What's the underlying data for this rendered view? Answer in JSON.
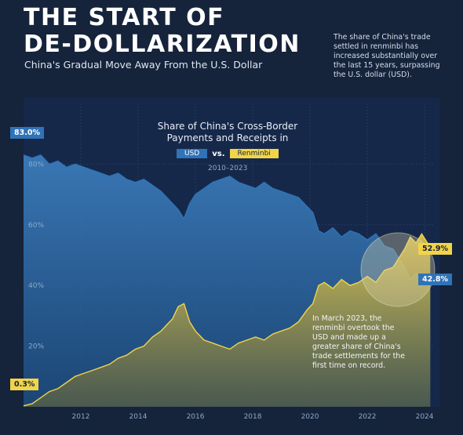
{
  "header": {
    "title_line1": "THE START OF",
    "title_line2": "DE-DOLLARIZATION",
    "subtitle": "China's Gradual Move Away From the U.S. Dollar",
    "side_note": "The share of China's trade settled in renminbi has increased substantially over the last 15 years, surpassing the U.S. dollar (USD)."
  },
  "chart_data": {
    "type": "area",
    "title": "Share of China's Cross-Border Payments and Receipts in",
    "legend": {
      "usd": "USD",
      "vs": "vs.",
      "rmb": "Renminbi"
    },
    "years_label": "2010–2023",
    "xlabel": "",
    "ylabel": "",
    "xlim": [
      2010,
      2024.3
    ],
    "ylim": [
      0,
      100
    ],
    "y_ticks": [
      {
        "value": 20,
        "label": "20%"
      },
      {
        "value": 40,
        "label": "40%"
      },
      {
        "value": 60,
        "label": "60%"
      },
      {
        "value": 80,
        "label": "80%"
      }
    ],
    "x_ticks": [
      {
        "value": 2012,
        "label": "2012"
      },
      {
        "value": 2014,
        "label": "2014"
      },
      {
        "value": 2016,
        "label": "2016"
      },
      {
        "value": 2018,
        "label": "2018"
      },
      {
        "value": 2020,
        "label": "2020"
      },
      {
        "value": 2022,
        "label": "2022"
      },
      {
        "value": 2024,
        "label": "2024"
      }
    ],
    "series": [
      {
        "name": "USD",
        "color": "#2f73b8",
        "points": [
          [
            2010.0,
            83.0
          ],
          [
            2010.3,
            82
          ],
          [
            2010.6,
            83
          ],
          [
            2010.9,
            80
          ],
          [
            2011.2,
            81
          ],
          [
            2011.5,
            79
          ],
          [
            2011.8,
            80
          ],
          [
            2012.1,
            79
          ],
          [
            2012.4,
            78
          ],
          [
            2012.7,
            77
          ],
          [
            2013.0,
            76
          ],
          [
            2013.3,
            77
          ],
          [
            2013.6,
            75
          ],
          [
            2013.9,
            74
          ],
          [
            2014.2,
            75
          ],
          [
            2014.5,
            73
          ],
          [
            2014.8,
            71
          ],
          [
            2015.1,
            68
          ],
          [
            2015.4,
            65
          ],
          [
            2015.6,
            62
          ],
          [
            2015.8,
            67
          ],
          [
            2016.0,
            70
          ],
          [
            2016.3,
            72
          ],
          [
            2016.6,
            74
          ],
          [
            2016.9,
            75
          ],
          [
            2017.2,
            76
          ],
          [
            2017.5,
            74
          ],
          [
            2017.8,
            73
          ],
          [
            2018.1,
            72
          ],
          [
            2018.4,
            74
          ],
          [
            2018.7,
            72
          ],
          [
            2019.0,
            71
          ],
          [
            2019.3,
            70
          ],
          [
            2019.6,
            69
          ],
          [
            2019.9,
            66
          ],
          [
            2020.1,
            64
          ],
          [
            2020.3,
            58
          ],
          [
            2020.5,
            57
          ],
          [
            2020.8,
            59
          ],
          [
            2021.1,
            56
          ],
          [
            2021.4,
            58
          ],
          [
            2021.7,
            57
          ],
          [
            2022.0,
            55
          ],
          [
            2022.3,
            57
          ],
          [
            2022.6,
            53
          ],
          [
            2022.9,
            52
          ],
          [
            2023.1,
            49
          ],
          [
            2023.3,
            46
          ],
          [
            2023.5,
            42
          ],
          [
            2023.7,
            44
          ],
          [
            2023.9,
            41
          ],
          [
            2024.1,
            43
          ],
          [
            2024.2,
            42.8
          ]
        ]
      },
      {
        "name": "Renminbi",
        "color": "#f2d44a",
        "points": [
          [
            2010.0,
            0.3
          ],
          [
            2010.3,
            1
          ],
          [
            2010.6,
            3
          ],
          [
            2010.9,
            5
          ],
          [
            2011.2,
            6
          ],
          [
            2011.5,
            8
          ],
          [
            2011.8,
            10
          ],
          [
            2012.1,
            11
          ],
          [
            2012.4,
            12
          ],
          [
            2012.7,
            13
          ],
          [
            2013.0,
            14
          ],
          [
            2013.3,
            16
          ],
          [
            2013.6,
            17
          ],
          [
            2013.9,
            19
          ],
          [
            2014.2,
            20
          ],
          [
            2014.5,
            23
          ],
          [
            2014.8,
            25
          ],
          [
            2015.0,
            27
          ],
          [
            2015.2,
            29
          ],
          [
            2015.4,
            33
          ],
          [
            2015.6,
            34
          ],
          [
            2015.8,
            28
          ],
          [
            2016.0,
            25
          ],
          [
            2016.3,
            22
          ],
          [
            2016.6,
            21
          ],
          [
            2016.9,
            20
          ],
          [
            2017.2,
            19
          ],
          [
            2017.5,
            21
          ],
          [
            2017.8,
            22
          ],
          [
            2018.1,
            23
          ],
          [
            2018.4,
            22
          ],
          [
            2018.7,
            24
          ],
          [
            2019.0,
            25
          ],
          [
            2019.3,
            26
          ],
          [
            2019.6,
            28
          ],
          [
            2019.9,
            32
          ],
          [
            2020.1,
            34
          ],
          [
            2020.3,
            40
          ],
          [
            2020.5,
            41
          ],
          [
            2020.8,
            39
          ],
          [
            2021.1,
            42
          ],
          [
            2021.4,
            40
          ],
          [
            2021.7,
            41
          ],
          [
            2022.0,
            43
          ],
          [
            2022.3,
            41
          ],
          [
            2022.6,
            45
          ],
          [
            2022.9,
            46
          ],
          [
            2023.1,
            49
          ],
          [
            2023.3,
            52
          ],
          [
            2023.5,
            56
          ],
          [
            2023.7,
            54
          ],
          [
            2023.9,
            57
          ],
          [
            2024.1,
            54
          ],
          [
            2024.2,
            52.9
          ]
        ]
      }
    ],
    "callouts": {
      "usd_start": "83.0%",
      "rmb_start": "0.3%",
      "rmb_end": "52.9%",
      "usd_end": "42.8%"
    },
    "annotation": "In March 2023, the renminbi overtook the USD and made up a greater share of China's trade settlements for the first time on record."
  }
}
